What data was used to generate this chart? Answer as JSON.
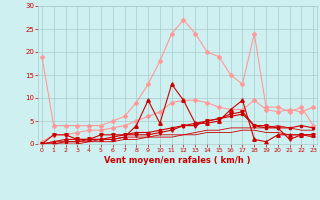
{
  "x": [
    0,
    1,
    2,
    3,
    4,
    5,
    6,
    7,
    8,
    9,
    10,
    11,
    12,
    13,
    14,
    15,
    16,
    17,
    18,
    19,
    20,
    21,
    22,
    23
  ],
  "series": [
    {
      "name": "rafales_light1",
      "color": "#ff9999",
      "linewidth": 0.8,
      "marker": "D",
      "markersize": 2,
      "y": [
        19.0,
        4.0,
        4.0,
        4.0,
        4.0,
        4.0,
        5.0,
        6.0,
        9.0,
        13.0,
        18.0,
        24.0,
        27.0,
        24.0,
        20.0,
        19.0,
        15.0,
        13.0,
        24.0,
        8.0,
        8.0,
        7.0,
        8.0,
        4.0
      ]
    },
    {
      "name": "rafales_light2",
      "color": "#ff9999",
      "linewidth": 0.8,
      "marker": "D",
      "markersize": 2,
      "y": [
        0.5,
        2.0,
        2.0,
        2.5,
        3.0,
        3.0,
        3.5,
        4.0,
        5.0,
        6.0,
        7.0,
        9.0,
        9.5,
        9.5,
        9.0,
        8.0,
        7.5,
        7.5,
        9.5,
        7.5,
        7.0,
        7.5,
        7.0,
        8.0
      ]
    },
    {
      "name": "moyen_dark1",
      "color": "#cc0000",
      "linewidth": 0.8,
      "marker": "^",
      "markersize": 2.5,
      "y": [
        0.0,
        0.5,
        1.0,
        1.0,
        1.0,
        1.0,
        1.0,
        1.5,
        4.0,
        9.5,
        4.5,
        13.0,
        9.5,
        4.5,
        4.5,
        5.0,
        7.5,
        9.5,
        1.0,
        0.5,
        2.0,
        2.0,
        2.0,
        2.0
      ]
    },
    {
      "name": "moyen_dark2",
      "color": "#cc0000",
      "linewidth": 0.8,
      "marker": "v",
      "markersize": 2.5,
      "y": [
        0.0,
        2.0,
        2.0,
        1.0,
        1.0,
        2.0,
        2.0,
        2.0,
        2.0,
        2.0,
        2.5,
        3.0,
        4.0,
        4.0,
        5.0,
        5.5,
        6.5,
        7.0,
        4.0,
        4.0,
        3.5,
        1.0,
        2.0,
        2.0
      ]
    },
    {
      "name": "moyen_dark3",
      "color": "#cc0000",
      "linewidth": 0.8,
      "marker": "s",
      "markersize": 1.5,
      "y": [
        0.0,
        0.0,
        0.5,
        0.5,
        1.0,
        1.0,
        1.5,
        2.0,
        2.5,
        2.5,
        3.0,
        3.5,
        4.0,
        4.5,
        5.0,
        5.5,
        6.0,
        6.5,
        4.0,
        3.5,
        3.5,
        3.5,
        4.0,
        3.5
      ]
    },
    {
      "name": "flat_line1",
      "color": "#cc0000",
      "linewidth": 0.6,
      "marker": null,
      "markersize": 0,
      "y": [
        0.0,
        0.5,
        0.5,
        0.5,
        0.5,
        1.0,
        1.0,
        1.5,
        1.5,
        1.5,
        2.0,
        2.0,
        2.0,
        2.5,
        3.0,
        3.0,
        3.5,
        3.5,
        3.5,
        3.5,
        4.0,
        3.5,
        3.0,
        3.0
      ]
    },
    {
      "name": "flat_line2",
      "color": "#cc0000",
      "linewidth": 0.6,
      "marker": null,
      "markersize": 0,
      "y": [
        0.0,
        0.0,
        0.0,
        0.0,
        0.5,
        0.5,
        0.5,
        1.0,
        1.0,
        1.5,
        1.5,
        1.5,
        2.0,
        2.0,
        2.5,
        2.5,
        2.5,
        3.0,
        3.0,
        2.5,
        2.5,
        2.0,
        2.0,
        1.5
      ]
    }
  ],
  "xlabel": "Vent moyen/en rafales ( km/h )",
  "xlim": [
    0,
    23
  ],
  "ylim": [
    0,
    30
  ],
  "yticks": [
    0,
    5,
    10,
    15,
    20,
    25,
    30
  ],
  "xticks": [
    0,
    1,
    2,
    3,
    4,
    5,
    6,
    7,
    8,
    9,
    10,
    11,
    12,
    13,
    14,
    15,
    16,
    17,
    18,
    19,
    20,
    21,
    22,
    23
  ],
  "bg_color": "#cff0f0",
  "grid_color": "#aacccc",
  "tick_color": "#cc0000",
  "label_color": "#cc0000",
  "figsize": [
    3.2,
    2.0
  ],
  "dpi": 100
}
